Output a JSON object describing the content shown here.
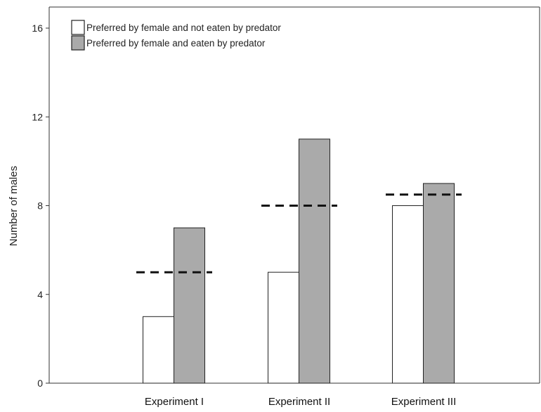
{
  "chart_data": {
    "type": "bar",
    "categories": [
      "Experiment I",
      "Experiment II",
      "Experiment III"
    ],
    "series": [
      {
        "name": "Preferred by female and not eaten by predator",
        "values": [
          3,
          5,
          8
        ],
        "color": "#ffffff"
      },
      {
        "name": "Preferred by female and eaten by predator",
        "values": [
          7,
          11,
          9
        ],
        "color": "#aaaaaa"
      }
    ],
    "reference_lines": [
      5,
      8,
      8.5
    ],
    "xlabel": "",
    "ylabel": "Number of males",
    "ylim": [
      0,
      16
    ],
    "yticks": [
      "0",
      "4",
      "8",
      "12",
      "16"
    ],
    "grid": false,
    "legend_position": "top-left"
  }
}
